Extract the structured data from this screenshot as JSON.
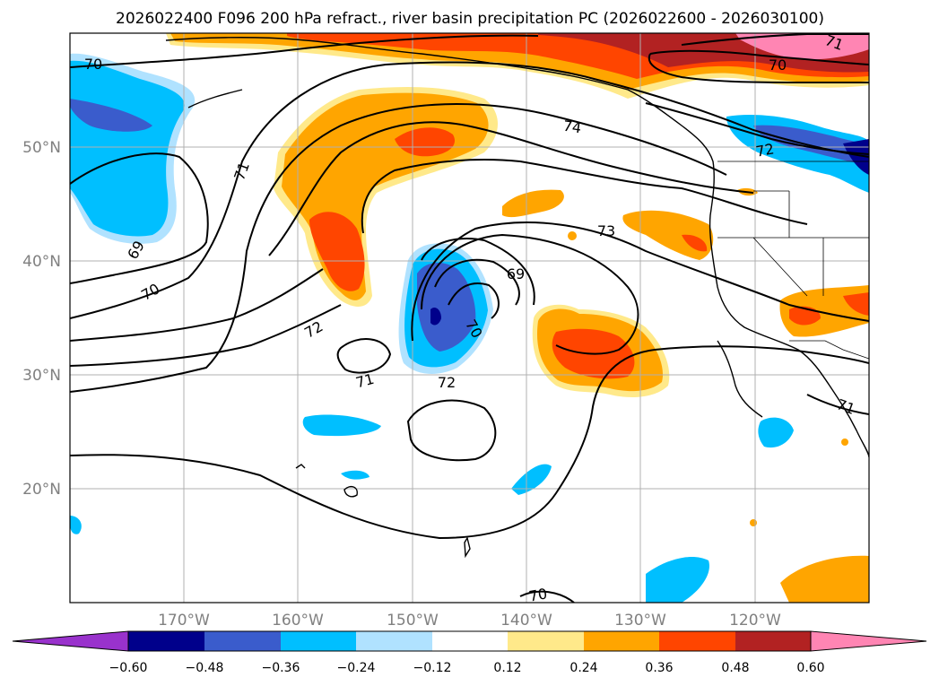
{
  "title": "2026022400 F096 200 hPa refract., river basin precipitation PC (2026022600 - 2026030100)",
  "map": {
    "projection": "PlateCarree",
    "extent": {
      "lon_min": -180,
      "lon_max": -110,
      "lat_min": 10,
      "lat_max": 60
    },
    "gridlines": true,
    "lat_ticks": [
      {
        "value": 50,
        "label": "50°N"
      },
      {
        "value": 40,
        "label": "40°N"
      },
      {
        "value": 30,
        "label": "30°N"
      },
      {
        "value": 20,
        "label": "20°N"
      }
    ],
    "lon_ticks": [
      {
        "value": -170,
        "label": "170°W"
      },
      {
        "value": -160,
        "label": "160°W"
      },
      {
        "value": -150,
        "label": "150°W"
      },
      {
        "value": -140,
        "label": "140°W"
      },
      {
        "value": -130,
        "label": "130°W"
      },
      {
        "value": -120,
        "label": "120°W"
      }
    ],
    "contour_labels": [
      "70",
      "71",
      "69",
      "70",
      "72",
      "71",
      "72",
      "70",
      "69",
      "74",
      "73",
      "72",
      "70",
      "71",
      "71",
      "70"
    ]
  },
  "colorbar": {
    "ticks": [
      "−0.60",
      "−0.48",
      "−0.36",
      "−0.24",
      "−0.12",
      "0.12",
      "0.24",
      "0.36",
      "0.48",
      "0.60"
    ],
    "colors": [
      "#9932cc",
      "#00008b",
      "#3a5ccc",
      "#00bfff",
      "#b0e2ff",
      "#ffffff",
      "#ffe98a",
      "#ffa500",
      "#ff4500",
      "#b22222",
      "#ff85b3"
    ],
    "extend": "both"
  }
}
